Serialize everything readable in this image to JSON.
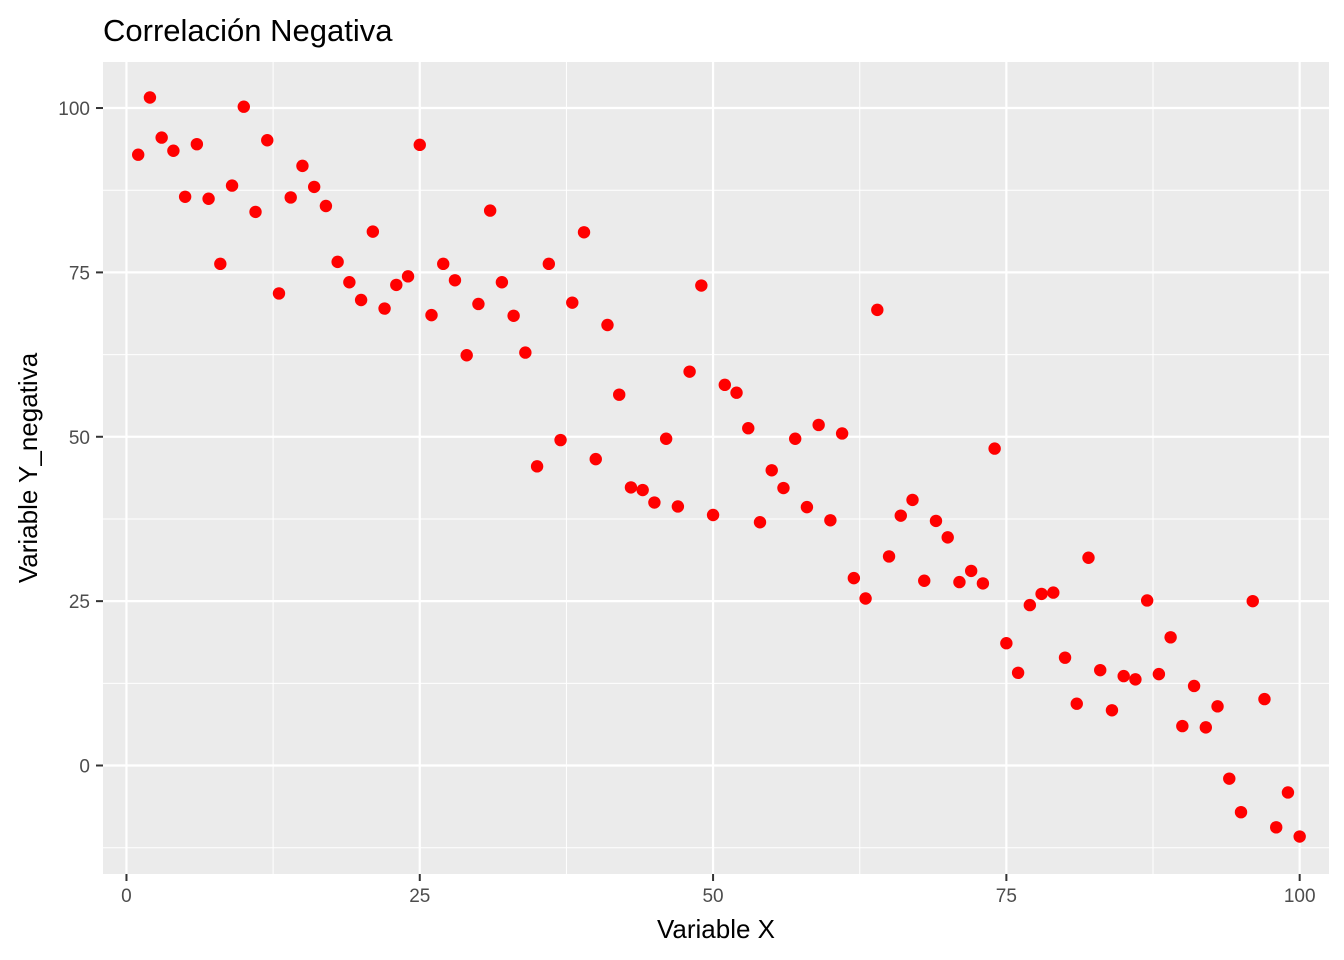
{
  "chart_data": {
    "type": "scatter",
    "title": "Correlación Negativa",
    "xlabel": "Variable X",
    "ylabel": "Variable Y_negativa",
    "xlim": [
      -2,
      102.5
    ],
    "ylim": [
      -16.5,
      107
    ],
    "x_ticks": [
      0,
      25,
      50,
      75,
      100
    ],
    "x_tick_labels": [
      "0",
      "25",
      "50",
      "75",
      "100"
    ],
    "y_ticks": [
      0,
      25,
      50,
      75,
      100
    ],
    "y_tick_labels": [
      "0",
      "25",
      "50",
      "75",
      "100"
    ],
    "grid": true,
    "legend": "none",
    "colors": {
      "panel": "#ebebeb",
      "grid": "#ffffff",
      "point": "#ff0000"
    },
    "x": [
      1,
      2,
      3,
      4,
      5,
      6,
      7,
      8,
      9,
      10,
      11,
      12,
      13,
      14,
      15,
      16,
      17,
      18,
      19,
      20,
      21,
      22,
      23,
      24,
      25,
      26,
      27,
      28,
      29,
      30,
      31,
      32,
      33,
      34,
      35,
      36,
      37,
      38,
      39,
      40,
      41,
      42,
      43,
      44,
      45,
      46,
      47,
      48,
      49,
      50,
      51,
      52,
      53,
      54,
      55,
      56,
      57,
      58,
      59,
      60,
      61,
      62,
      63,
      64,
      65,
      66,
      67,
      68,
      69,
      70,
      71,
      72,
      73,
      74,
      75,
      76,
      77,
      78,
      79,
      80,
      81,
      82,
      83,
      84,
      85,
      86,
      87,
      88,
      89,
      90,
      91,
      92,
      93,
      94,
      95,
      96,
      97,
      98,
      99,
      100
    ],
    "y": [
      92.9,
      101.6,
      95.5,
      93.5,
      86.5,
      94.5,
      86.2,
      76.3,
      88.2,
      100.2,
      84.2,
      95.1,
      71.8,
      86.4,
      91.2,
      88.0,
      85.1,
      76.6,
      73.5,
      70.8,
      81.2,
      69.5,
      73.1,
      74.4,
      94.4,
      68.5,
      76.3,
      73.8,
      62.4,
      70.2,
      84.4,
      73.5,
      68.4,
      62.8,
      45.5,
      76.3,
      49.5,
      70.4,
      81.1,
      46.6,
      67.0,
      56.4,
      42.3,
      41.9,
      40.0,
      49.7,
      39.4,
      59.9,
      73.0,
      38.1,
      57.9,
      56.7,
      51.3,
      37.0,
      44.9,
      42.2,
      49.7,
      39.3,
      51.8,
      37.3,
      50.5,
      28.5,
      25.4,
      69.3,
      31.8,
      38.0,
      40.4,
      28.1,
      37.2,
      34.7,
      27.9,
      29.6,
      27.7,
      48.2,
      18.6,
      14.1,
      24.4,
      26.1,
      26.3,
      16.4,
      9.4,
      31.6,
      14.5,
      8.4,
      13.6,
      13.1,
      25.1,
      13.9,
      19.5,
      6.0,
      12.1,
      5.8,
      9.0,
      -2.0,
      -7.1,
      25.0,
      10.1,
      -9.4,
      -4.1,
      -10.8
    ]
  }
}
